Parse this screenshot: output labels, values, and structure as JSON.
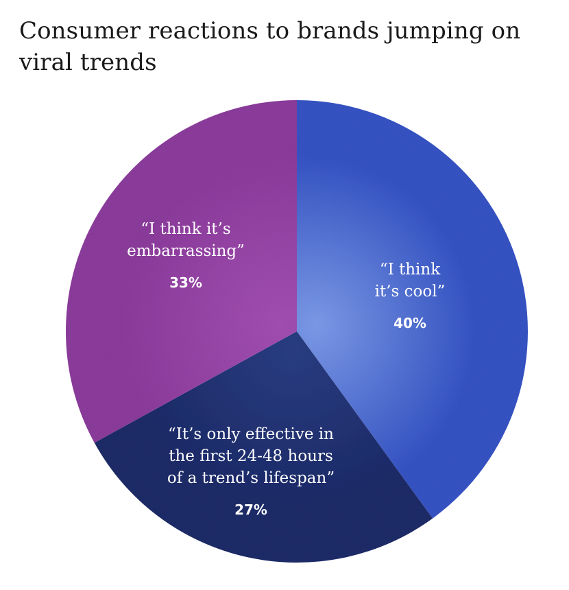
{
  "chart_data": {
    "type": "pie",
    "title": "Consumer reactions to brands jumping on viral trends",
    "slices": [
      {
        "label_lines": [
          "“I think",
          "it’s cool”"
        ],
        "value": 40,
        "value_label": "40%",
        "color": "#3553c4",
        "color_light": "#7c9ae8"
      },
      {
        "label_lines": [
          "“It’s only effective in",
          "the first 24-48 hours",
          "of a trend’s lifespan”"
        ],
        "value": 27,
        "value_label": "27%",
        "color": "#1b2a68",
        "color_light": "#2a3d82"
      },
      {
        "label_lines": [
          "“I think it’s",
          "embarrassing”"
        ],
        "value": 33,
        "value_label": "33%",
        "color": "#8c3b9c",
        "color_light": "#a24fb2"
      }
    ],
    "start": "12 o'clock, clockwise"
  }
}
